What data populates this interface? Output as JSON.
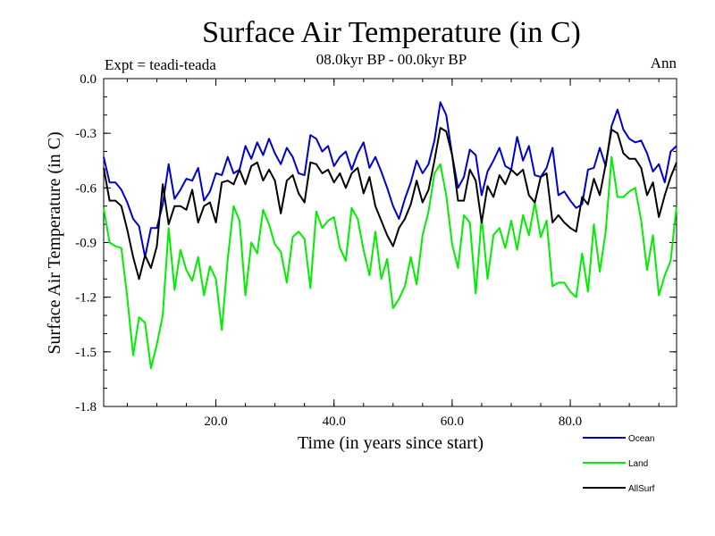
{
  "chart_data": {
    "type": "line",
    "title": "Surface Air Temperature (in C)",
    "left_label": "Expt = teadi-teada",
    "subtitle": "08.0kyr BP - 00.0kyr BP",
    "right_label": "Ann",
    "xlabel": "Time (in years since start)",
    "ylabel": "Surface Air Temperature (in C)",
    "xlim": [
      1,
      98
    ],
    "ylim": [
      -1.8,
      0.0
    ],
    "x_ticks": [
      20,
      40,
      60,
      80
    ],
    "x_tick_labels": [
      "20.0",
      "40.0",
      "60.0",
      "80.0"
    ],
    "y_ticks": [
      0.0,
      -0.3,
      -0.6,
      -0.9,
      -1.2,
      -1.5,
      -1.8
    ],
    "y_tick_labels": [
      "0.0",
      "-0.3",
      "-0.6",
      "-0.9",
      "-1.2",
      "-1.5",
      "-1.8"
    ],
    "x": [
      1,
      2,
      3,
      4,
      5,
      6,
      7,
      8,
      9,
      10,
      11,
      12,
      13,
      14,
      15,
      16,
      17,
      18,
      19,
      20,
      21,
      22,
      23,
      24,
      25,
      26,
      27,
      28,
      29,
      30,
      31,
      32,
      33,
      34,
      35,
      36,
      37,
      38,
      39,
      40,
      41,
      42,
      43,
      44,
      45,
      46,
      47,
      48,
      49,
      50,
      51,
      52,
      53,
      54,
      55,
      56,
      57,
      58,
      59,
      60,
      61,
      62,
      63,
      64,
      65,
      66,
      67,
      68,
      69,
      70,
      71,
      72,
      73,
      74,
      75,
      76,
      77,
      78,
      79,
      80,
      81,
      82,
      83,
      84,
      85,
      86,
      87,
      88,
      89,
      90,
      91,
      92,
      93,
      94,
      95,
      96,
      97,
      98
    ],
    "series": [
      {
        "name": "Ocean",
        "color": "#0000cc",
        "values": [
          -0.43,
          -0.57,
          -0.57,
          -0.61,
          -0.68,
          -0.77,
          -0.81,
          -0.98,
          -0.82,
          -0.82,
          -0.69,
          -0.47,
          -0.66,
          -0.61,
          -0.55,
          -0.56,
          -0.49,
          -0.67,
          -0.62,
          -0.52,
          -0.53,
          -0.43,
          -0.52,
          -0.5,
          -0.37,
          -0.44,
          -0.35,
          -0.42,
          -0.33,
          -0.41,
          -0.47,
          -0.38,
          -0.43,
          -0.52,
          -0.53,
          -0.31,
          -0.33,
          -0.4,
          -0.37,
          -0.48,
          -0.43,
          -0.4,
          -0.5,
          -0.41,
          -0.35,
          -0.49,
          -0.43,
          -0.51,
          -0.6,
          -0.7,
          -0.77,
          -0.66,
          -0.57,
          -0.45,
          -0.52,
          -0.47,
          -0.34,
          -0.13,
          -0.2,
          -0.42,
          -0.6,
          -0.54,
          -0.39,
          -0.42,
          -0.64,
          -0.51,
          -0.45,
          -0.38,
          -0.48,
          -0.5,
          -0.32,
          -0.45,
          -0.37,
          -0.53,
          -0.54,
          -0.49,
          -0.38,
          -0.64,
          -0.62,
          -0.67,
          -0.71,
          -0.69,
          -0.5,
          -0.49,
          -0.38,
          -0.48,
          -0.26,
          -0.17,
          -0.28,
          -0.33,
          -0.35,
          -0.34,
          -0.41,
          -0.51,
          -0.47,
          -0.57,
          -0.4,
          -0.37
        ]
      },
      {
        "name": "Land",
        "color": "#00ee00",
        "values": [
          -0.71,
          -0.9,
          -0.92,
          -0.93,
          -1.2,
          -1.52,
          -1.31,
          -1.34,
          -1.59,
          -1.46,
          -1.3,
          -0.82,
          -1.16,
          -0.94,
          -1.05,
          -1.11,
          -0.98,
          -1.19,
          -1.03,
          -1.1,
          -1.38,
          -0.99,
          -0.7,
          -0.78,
          -1.19,
          -0.9,
          -0.96,
          -0.72,
          -0.8,
          -0.91,
          -0.95,
          -1.12,
          -0.87,
          -0.84,
          -0.88,
          -1.15,
          -0.73,
          -0.82,
          -0.78,
          -0.76,
          -0.93,
          -1.0,
          -0.71,
          -0.77,
          -0.94,
          -1.08,
          -0.84,
          -1.1,
          -0.99,
          -1.26,
          -1.21,
          -1.14,
          -0.98,
          -1.13,
          -0.86,
          -0.73,
          -0.52,
          -0.47,
          -0.64,
          -0.91,
          -1.04,
          -0.75,
          -0.79,
          -1.18,
          -0.76,
          -1.1,
          -0.86,
          -0.82,
          -0.93,
          -0.78,
          -0.94,
          -0.75,
          -0.86,
          -0.68,
          -0.87,
          -0.78,
          -1.14,
          -1.12,
          -1.12,
          -1.17,
          -1.2,
          -0.96,
          -1.17,
          -0.8,
          -1.06,
          -0.84,
          -0.43,
          -0.65,
          -0.65,
          -0.62,
          -0.6,
          -0.78,
          -1.05,
          -0.86,
          -1.19,
          -1.08,
          -1.0,
          -0.7
        ]
      },
      {
        "name": "AllSurf",
        "color": "#000000",
        "values": [
          -0.49,
          -0.67,
          -0.67,
          -0.7,
          -0.83,
          -0.98,
          -1.1,
          -0.97,
          -1.04,
          -0.92,
          -0.58,
          -0.8,
          -0.7,
          -0.7,
          -0.72,
          -0.61,
          -0.79,
          -0.7,
          -0.68,
          -0.79,
          -0.57,
          -0.56,
          -0.58,
          -0.5,
          -0.58,
          -0.48,
          -0.46,
          -0.56,
          -0.5,
          -0.56,
          -0.74,
          -0.56,
          -0.53,
          -0.63,
          -0.68,
          -0.46,
          -0.47,
          -0.52,
          -0.5,
          -0.57,
          -0.52,
          -0.6,
          -0.52,
          -0.49,
          -0.63,
          -0.54,
          -0.7,
          -0.78,
          -0.86,
          -0.92,
          -0.82,
          -0.77,
          -0.69,
          -0.56,
          -0.68,
          -0.61,
          -0.45,
          -0.27,
          -0.29,
          -0.42,
          -0.67,
          -0.67,
          -0.5,
          -0.56,
          -0.79,
          -0.59,
          -0.65,
          -0.53,
          -0.58,
          -0.5,
          -0.53,
          -0.5,
          -0.64,
          -0.68,
          -0.54,
          -0.52,
          -0.79,
          -0.75,
          -0.79,
          -0.82,
          -0.84,
          -0.65,
          -0.69,
          -0.55,
          -0.64,
          -0.47,
          -0.28,
          -0.3,
          -0.41,
          -0.44,
          -0.44,
          -0.49,
          -0.64,
          -0.57,
          -0.76,
          -0.64,
          -0.54,
          -0.46
        ]
      }
    ],
    "legend_position": "bottom-right"
  }
}
